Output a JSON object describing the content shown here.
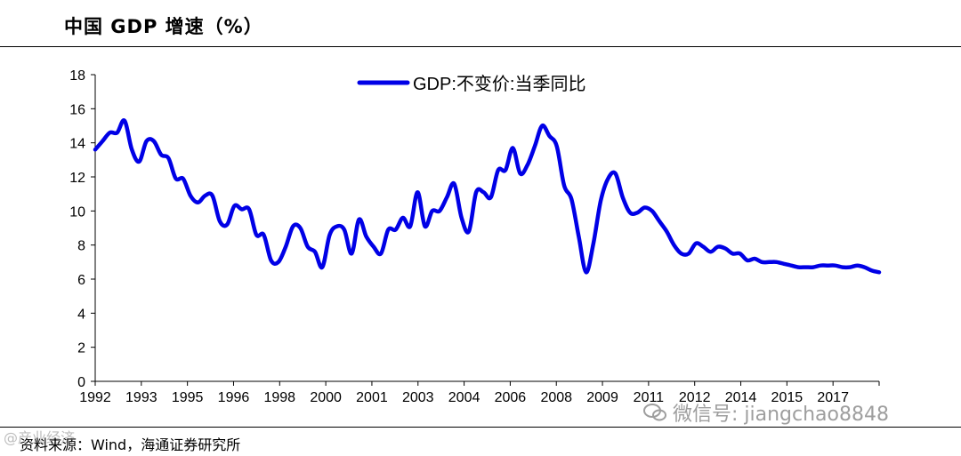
{
  "header": {
    "title": "中国 GDP 增速（%）"
  },
  "footer": {
    "source": "资料来源：Wind，海通证券研究所"
  },
  "watermarks": {
    "left": "@产业经济",
    "right": "微信号: jiangchao8848",
    "icon": "wechat-icon"
  },
  "colors": {
    "series": "#0000e6",
    "axis": "#000000"
  },
  "chart_data": {
    "type": "line",
    "title": "",
    "xlabel": "",
    "ylabel": "",
    "ylim": [
      0,
      18
    ],
    "yticks": [
      0,
      2,
      4,
      6,
      8,
      10,
      12,
      14,
      16,
      18
    ],
    "xlim": [
      1992.0,
      2018.75
    ],
    "xtick_labels": [
      "1992",
      "1993",
      "1995",
      "1996",
      "1998",
      "2000",
      "2001",
      "2003",
      "2004",
      "2006",
      "2008",
      "2009",
      "2011",
      "2012",
      "2014",
      "2015",
      "2017"
    ],
    "legend": {
      "placement": "top-center"
    },
    "grid": false,
    "series": [
      {
        "name": "GDP:不变价:当季同比",
        "x": [
          1992.0,
          1992.25,
          1992.5,
          1992.75,
          1993.0,
          1993.25,
          1993.5,
          1993.75,
          1994.0,
          1994.25,
          1994.5,
          1994.75,
          1995.0,
          1995.25,
          1995.5,
          1995.75,
          1996.0,
          1996.25,
          1996.5,
          1996.75,
          1997.0,
          1997.25,
          1997.5,
          1997.75,
          1998.0,
          1998.25,
          1998.5,
          1998.75,
          1999.0,
          1999.25,
          1999.5,
          1999.75,
          2000.0,
          2000.25,
          2000.5,
          2000.75,
          2001.0,
          2001.25,
          2001.5,
          2001.75,
          2002.0,
          2002.25,
          2002.5,
          2002.75,
          2003.0,
          2003.25,
          2003.5,
          2003.75,
          2004.0,
          2004.25,
          2004.5,
          2004.75,
          2005.0,
          2005.25,
          2005.5,
          2005.75,
          2006.0,
          2006.25,
          2006.5,
          2006.75,
          2007.0,
          2007.25,
          2007.5,
          2007.75,
          2008.0,
          2008.25,
          2008.5,
          2008.75,
          2009.0,
          2009.25,
          2009.5,
          2009.75,
          2010.0,
          2010.25,
          2010.5,
          2010.75,
          2011.0,
          2011.25,
          2011.5,
          2011.75,
          2012.0,
          2012.25,
          2012.5,
          2012.75,
          2013.0,
          2013.25,
          2013.5,
          2013.75,
          2014.0,
          2014.25,
          2014.5,
          2014.75,
          2015.0,
          2015.25,
          2015.5,
          2015.75,
          2016.0,
          2016.25,
          2016.5,
          2016.75,
          2017.0,
          2017.25,
          2017.5,
          2017.75,
          2018.0,
          2018.25,
          2018.5,
          2018.75
        ],
        "values": [
          13.6,
          14.1,
          14.6,
          14.6,
          15.3,
          13.6,
          12.9,
          14.1,
          14.1,
          13.3,
          13.1,
          11.9,
          11.9,
          10.9,
          10.5,
          10.9,
          10.9,
          9.4,
          9.2,
          10.3,
          10.1,
          10.1,
          8.6,
          8.6,
          7.1,
          7.0,
          7.9,
          9.1,
          9.0,
          7.9,
          7.6,
          6.7,
          8.6,
          9.1,
          8.9,
          7.5,
          9.5,
          8.5,
          7.9,
          7.5,
          8.9,
          8.9,
          9.6,
          9.1,
          11.1,
          9.1,
          10.0,
          10.0,
          10.8,
          11.6,
          9.6,
          8.8,
          11.1,
          11.1,
          10.8,
          12.4,
          12.4,
          13.7,
          12.2,
          12.7,
          13.8,
          15.0,
          14.4,
          13.8,
          11.5,
          10.7,
          8.5,
          6.4,
          8.1,
          10.6,
          11.9,
          12.2,
          10.8,
          9.9,
          9.9,
          10.2,
          10.0,
          9.4,
          8.8,
          8.0,
          7.5,
          7.5,
          8.1,
          7.9,
          7.6,
          7.9,
          7.8,
          7.5,
          7.5,
          7.1,
          7.2,
          7.0,
          7.0,
          7.0,
          6.9,
          6.8,
          6.7,
          6.7,
          6.7,
          6.8,
          6.8,
          6.8,
          6.7,
          6.7,
          6.8,
          6.7,
          6.5,
          6.4
        ]
      }
    ]
  }
}
